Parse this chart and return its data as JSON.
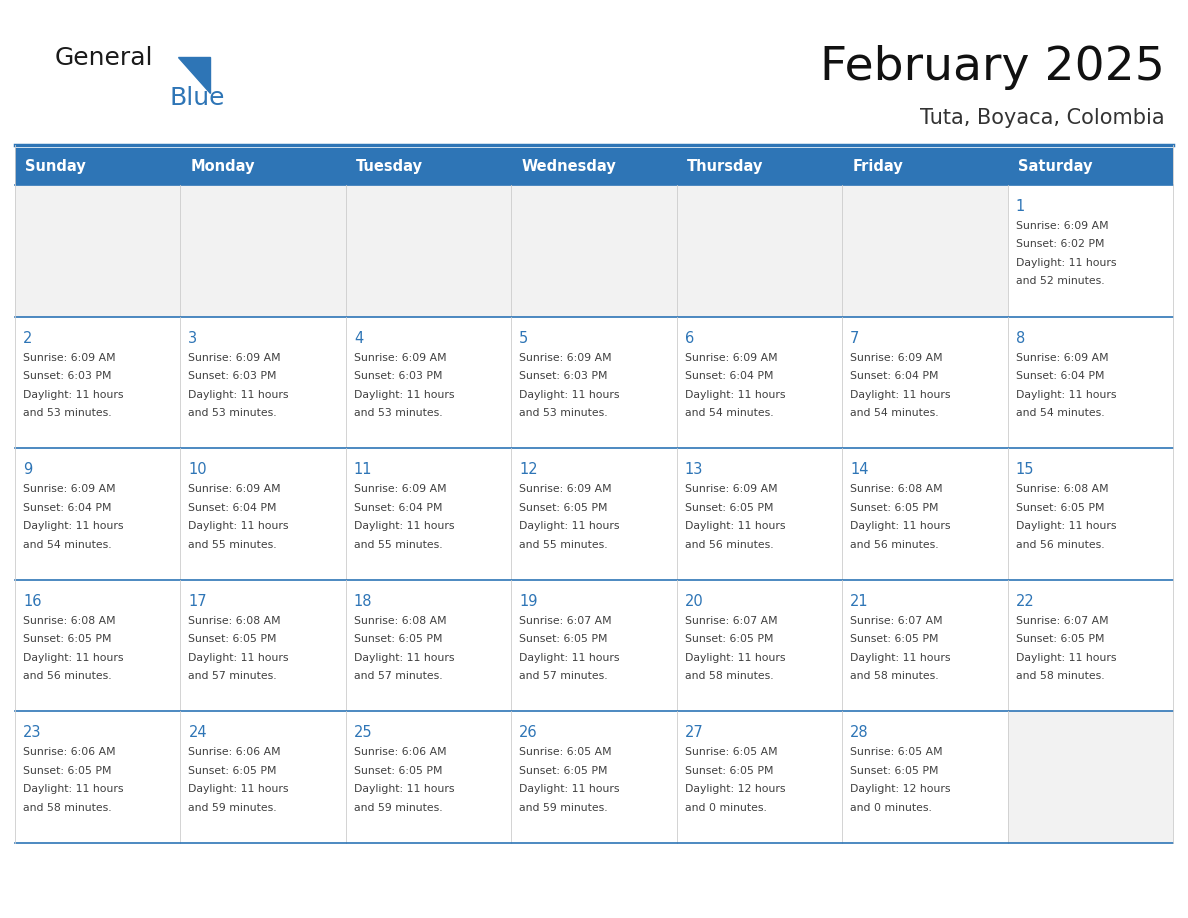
{
  "title": "February 2025",
  "subtitle": "Tuta, Boyaca, Colombia",
  "header_bg": "#2E75B6",
  "header_text_color": "#FFFFFF",
  "cell_bg_white": "#FFFFFF",
  "cell_bg_gray": "#F2F2F2",
  "cell_border_top_color": "#2E75B6",
  "cell_vertical_border_color": "#CCCCCC",
  "day_number_color": "#2E75B6",
  "info_text_color": "#404040",
  "days_of_week": [
    "Sunday",
    "Monday",
    "Tuesday",
    "Wednesday",
    "Thursday",
    "Friday",
    "Saturday"
  ],
  "calendar_data": [
    [
      null,
      null,
      null,
      null,
      null,
      null,
      {
        "day": 1,
        "sunrise": "6:09 AM",
        "sunset": "6:02 PM",
        "daylight": "11 hours and 52 minutes."
      }
    ],
    [
      {
        "day": 2,
        "sunrise": "6:09 AM",
        "sunset": "6:03 PM",
        "daylight": "11 hours and 53 minutes."
      },
      {
        "day": 3,
        "sunrise": "6:09 AM",
        "sunset": "6:03 PM",
        "daylight": "11 hours and 53 minutes."
      },
      {
        "day": 4,
        "sunrise": "6:09 AM",
        "sunset": "6:03 PM",
        "daylight": "11 hours and 53 minutes."
      },
      {
        "day": 5,
        "sunrise": "6:09 AM",
        "sunset": "6:03 PM",
        "daylight": "11 hours and 53 minutes."
      },
      {
        "day": 6,
        "sunrise": "6:09 AM",
        "sunset": "6:04 PM",
        "daylight": "11 hours and 54 minutes."
      },
      {
        "day": 7,
        "sunrise": "6:09 AM",
        "sunset": "6:04 PM",
        "daylight": "11 hours and 54 minutes."
      },
      {
        "day": 8,
        "sunrise": "6:09 AM",
        "sunset": "6:04 PM",
        "daylight": "11 hours and 54 minutes."
      }
    ],
    [
      {
        "day": 9,
        "sunrise": "6:09 AM",
        "sunset": "6:04 PM",
        "daylight": "11 hours and 54 minutes."
      },
      {
        "day": 10,
        "sunrise": "6:09 AM",
        "sunset": "6:04 PM",
        "daylight": "11 hours and 55 minutes."
      },
      {
        "day": 11,
        "sunrise": "6:09 AM",
        "sunset": "6:04 PM",
        "daylight": "11 hours and 55 minutes."
      },
      {
        "day": 12,
        "sunrise": "6:09 AM",
        "sunset": "6:05 PM",
        "daylight": "11 hours and 55 minutes."
      },
      {
        "day": 13,
        "sunrise": "6:09 AM",
        "sunset": "6:05 PM",
        "daylight": "11 hours and 56 minutes."
      },
      {
        "day": 14,
        "sunrise": "6:08 AM",
        "sunset": "6:05 PM",
        "daylight": "11 hours and 56 minutes."
      },
      {
        "day": 15,
        "sunrise": "6:08 AM",
        "sunset": "6:05 PM",
        "daylight": "11 hours and 56 minutes."
      }
    ],
    [
      {
        "day": 16,
        "sunrise": "6:08 AM",
        "sunset": "6:05 PM",
        "daylight": "11 hours and 56 minutes."
      },
      {
        "day": 17,
        "sunrise": "6:08 AM",
        "sunset": "6:05 PM",
        "daylight": "11 hours and 57 minutes."
      },
      {
        "day": 18,
        "sunrise": "6:08 AM",
        "sunset": "6:05 PM",
        "daylight": "11 hours and 57 minutes."
      },
      {
        "day": 19,
        "sunrise": "6:07 AM",
        "sunset": "6:05 PM",
        "daylight": "11 hours and 57 minutes."
      },
      {
        "day": 20,
        "sunrise": "6:07 AM",
        "sunset": "6:05 PM",
        "daylight": "11 hours and 58 minutes."
      },
      {
        "day": 21,
        "sunrise": "6:07 AM",
        "sunset": "6:05 PM",
        "daylight": "11 hours and 58 minutes."
      },
      {
        "day": 22,
        "sunrise": "6:07 AM",
        "sunset": "6:05 PM",
        "daylight": "11 hours and 58 minutes."
      }
    ],
    [
      {
        "day": 23,
        "sunrise": "6:06 AM",
        "sunset": "6:05 PM",
        "daylight": "11 hours and 58 minutes."
      },
      {
        "day": 24,
        "sunrise": "6:06 AM",
        "sunset": "6:05 PM",
        "daylight": "11 hours and 59 minutes."
      },
      {
        "day": 25,
        "sunrise": "6:06 AM",
        "sunset": "6:05 PM",
        "daylight": "11 hours and 59 minutes."
      },
      {
        "day": 26,
        "sunrise": "6:05 AM",
        "sunset": "6:05 PM",
        "daylight": "11 hours and 59 minutes."
      },
      {
        "day": 27,
        "sunrise": "6:05 AM",
        "sunset": "6:05 PM",
        "daylight": "12 hours and 0 minutes."
      },
      {
        "day": 28,
        "sunrise": "6:05 AM",
        "sunset": "6:05 PM",
        "daylight": "12 hours and 0 minutes."
      },
      null
    ]
  ],
  "logo_general_color": "#1a1a1a",
  "logo_blue_color": "#2E75B6",
  "figsize": [
    11.88,
    9.18
  ],
  "dpi": 100
}
